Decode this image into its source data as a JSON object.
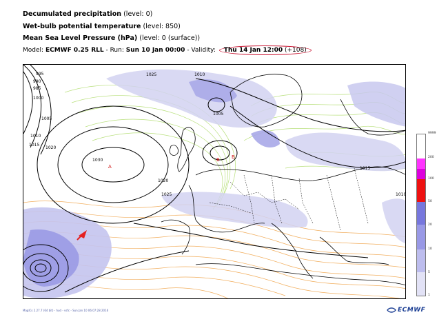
{
  "header": {
    "line1_title": "Decumulated precipitation",
    "line1_level": "(level: 0)",
    "line2_title": "Wet-bulb potential temperature",
    "line2_level": "(level: 850)",
    "line3_title": "Mean Sea Level Pressure (hPa)",
    "line3_level": "(level: 0 (surface))",
    "model_label": "Model:",
    "model_name": "ECMWF 0.25 RLL",
    "run_label": "- Run:",
    "run_value": "Sun 10 Jan 00:00",
    "validity_label": "- Validity:",
    "validity_value": "Thu 14 Jan 12:00",
    "validity_step": "(+108)"
  },
  "map": {
    "isobar_labels": [
      "995",
      "990",
      "985",
      "1000",
      "1005",
      "1010",
      "1015",
      "1020",
      "1025",
      "1030",
      "1010",
      "1005",
      "1015",
      "1010",
      "1020",
      "1025"
    ],
    "pressure_centers": [
      "A",
      "B",
      "B"
    ],
    "colors": {
      "precip_light": "#c8c8ef",
      "precip_mid": "#9a9ae4",
      "isobar": "#000000",
      "warm_contour": "#f0a24a",
      "cold_contour": "#a8d86a"
    }
  },
  "legend": {
    "labels": [
      "9999",
      "200",
      "100",
      "50",
      "20",
      "10",
      "5",
      "1"
    ],
    "colors": [
      "#ffffff",
      "#ff33ff",
      "#dd00dd",
      "#ee1111",
      "#7777dd",
      "#9999e6",
      "#bdbdee",
      "#e2e2f6"
    ]
  },
  "footer": {
    "meta": "MagICs 2.27.7 (64 bit) - hud - vsfc - Sun Jan 10 06:07:28 2016",
    "logo_text": "ECMWF"
  }
}
